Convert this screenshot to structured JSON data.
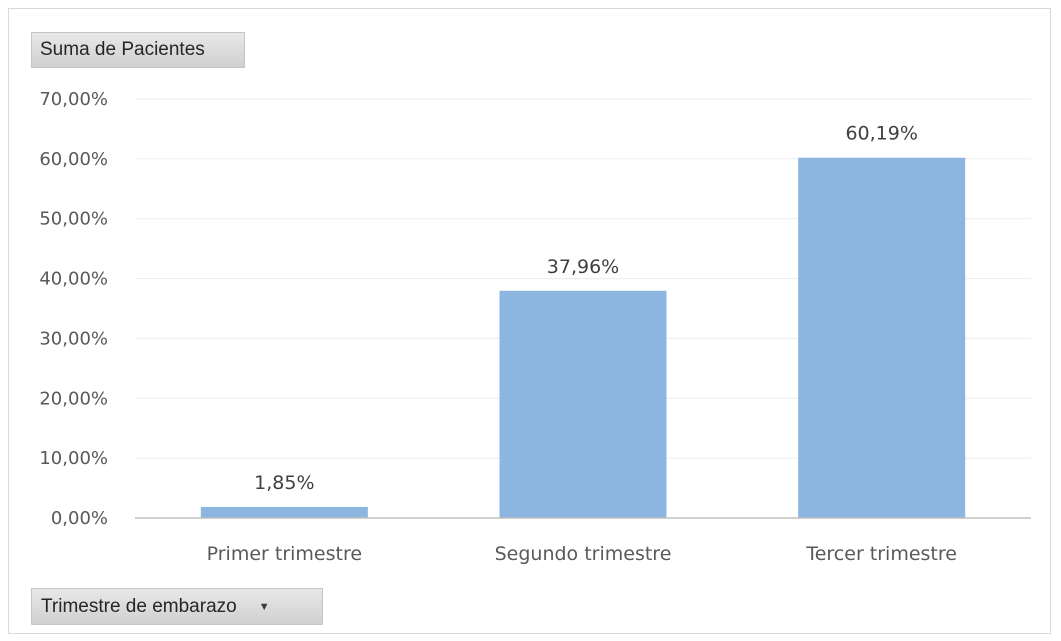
{
  "pivot_fields": {
    "value_field": "Suma de Pacientes",
    "axis_field": "Trimestre de embarazo",
    "axis_dropdown_icon": "dropdown-arrow-icon"
  },
  "colors": {
    "bar": "#8cb5e0",
    "grid": "#ececec",
    "axis": "#bfbfbf"
  },
  "chart_data": {
    "type": "bar",
    "categories": [
      "Primer trimestre",
      "Segundo trimestre",
      "Tercer trimestre"
    ],
    "values": [
      1.85,
      37.96,
      60.19
    ],
    "data_labels": [
      "1,85%",
      "37,96%",
      "60,19%"
    ],
    "ylim": [
      0,
      70
    ],
    "yticks": [
      0,
      10,
      20,
      30,
      40,
      50,
      60,
      70
    ],
    "ytick_labels": [
      "0,00%",
      "10,00%",
      "20,00%",
      "30,00%",
      "40,00%",
      "50,00%",
      "60,00%",
      "70,00%"
    ],
    "grid": true,
    "legend": "none",
    "title": "",
    "xlabel": "",
    "ylabel": ""
  }
}
